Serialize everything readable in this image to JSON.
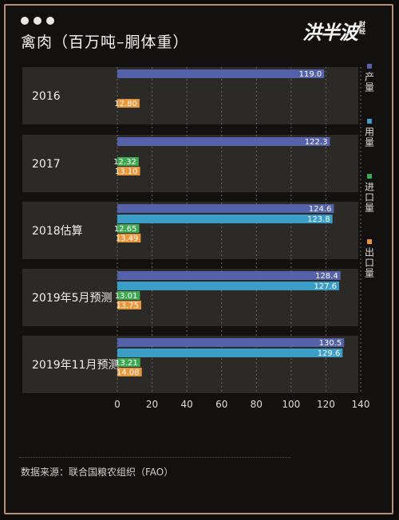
{
  "header": {
    "title": "禽肉（百万吨–胴体重）"
  },
  "brand": {
    "name": "洪半波",
    "sub": "财经"
  },
  "legend": [
    {
      "label": "产量",
      "color": "#5561a8"
    },
    {
      "label": "用量",
      "color": "#3a9ec6"
    },
    {
      "label": "进口量",
      "color": "#3ea852"
    },
    {
      "label": "出口量",
      "color": "#e8963a"
    }
  ],
  "footer": {
    "source": "数据来源：联合国粮农组织（FAO）"
  },
  "chart_data": {
    "type": "bar",
    "orientation": "horizontal",
    "title": "禽肉（百万吨–胴体重）",
    "categories": [
      "2016",
      "2017",
      "2018估算",
      "2019年5月预测",
      "2019年11月预测"
    ],
    "series": [
      {
        "name": "产量",
        "color": "#5561a8",
        "values": [
          119.0,
          122.3,
          124.6,
          128.4,
          130.5
        ],
        "labels": [
          "119.0",
          "122.3",
          "124.6",
          "128.4",
          "130.5"
        ]
      },
      {
        "name": "用量",
        "color": "#3a9ec6",
        "values": [
          null,
          null,
          123.8,
          127.6,
          129.6
        ],
        "labels": [
          null,
          null,
          "123.8",
          "127.6",
          "129.6"
        ]
      },
      {
        "name": "进口量",
        "color": "#3ea852",
        "values": [
          null,
          12.32,
          12.65,
          13.01,
          13.21
        ],
        "labels": [
          null,
          "12.32",
          "12.65",
          "13.01",
          "13.21"
        ]
      },
      {
        "name": "出口量",
        "color": "#e8963a",
        "values": [
          12.8,
          13.1,
          13.49,
          13.75,
          14.08
        ],
        "labels": [
          "12.80",
          "13.10",
          "13.49",
          "13.75",
          "14.08"
        ]
      }
    ],
    "x_ticks": [
      "0",
      "20",
      "40",
      "60",
      "80",
      "100",
      "120",
      "140"
    ],
    "xlim": [
      0,
      140
    ],
    "grid": true,
    "legend_position": "right"
  }
}
